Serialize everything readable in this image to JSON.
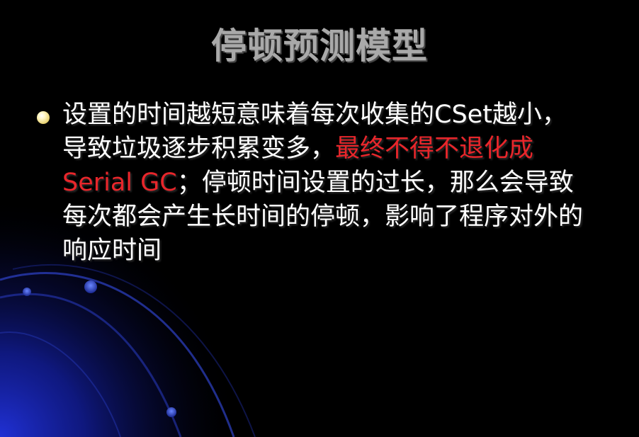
{
  "slide": {
    "title": "停顿预测模型",
    "bullet": {
      "part1": "设置的时间越短意味着每次收集的CSet越小，导致垃圾逐步积累变多，",
      "highlight": "最终不得不退化成Serial GC",
      "part2": "；停顿时间设置的过长，那么会导致每次都会产生长时间的停顿，影响了程序对外的响应时间"
    }
  },
  "colors": {
    "background": "#000000",
    "title": "#a9a9a9",
    "text": "#ffffff",
    "highlight": "#e8262b",
    "accent": "#1a2cd0"
  }
}
